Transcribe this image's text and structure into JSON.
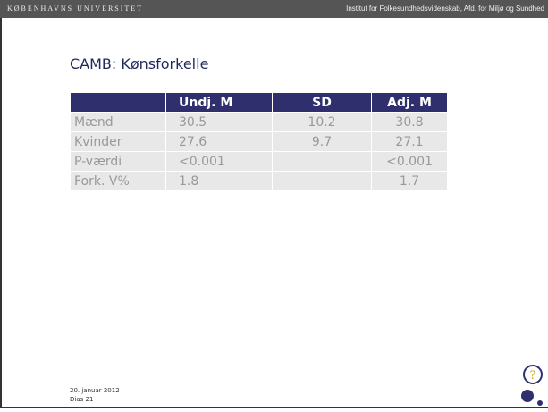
{
  "header": {
    "university": "KØBENHAVNS UNIVERSITET",
    "institute": "Institut for Folkesundhedsvidenskab, Afd. for Miljø og Sundhed"
  },
  "title": "CAMB: Kønsforkelle",
  "table": {
    "columns": [
      "Undj. M",
      "SD",
      "Adj. M"
    ],
    "rows": [
      [
        "Mænd",
        "30.5",
        "10.2",
        "30.8"
      ],
      [
        "Kvinder",
        "27.6",
        "9.7",
        "27.1"
      ],
      [
        "P-værdi",
        "<0.001",
        null,
        "<0.001"
      ],
      [
        "Fork. V%",
        "1.8",
        null,
        "1.7"
      ]
    ]
  },
  "footer": {
    "date": "20. januar 2012",
    "slide": "Dias 21"
  }
}
